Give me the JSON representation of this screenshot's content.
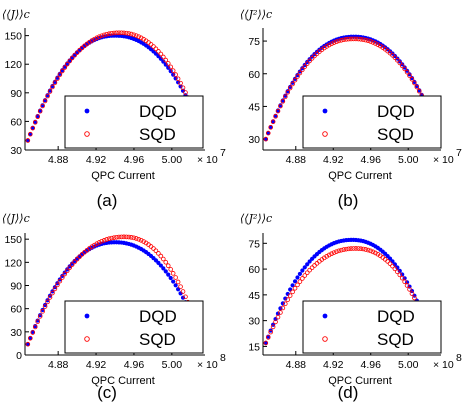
{
  "chart_data": [
    {
      "type": "scatter",
      "ylabel": "⟨⟨J⟩⟩c",
      "xlabel": "QPC Current",
      "caption": "(a)",
      "x_multiplier": "× 10",
      "x_exponent": "7",
      "xlim": [
        4.845,
        5.035
      ],
      "ylim": [
        30,
        158
      ],
      "xticks": [
        "4.88",
        "4.92",
        "4.96",
        "5.00"
      ],
      "xtick_values": [
        4.88,
        4.92,
        4.96,
        5.0
      ],
      "yticks": [
        "30",
        "60",
        "90",
        "120",
        "150"
      ],
      "ytick_values": [
        30,
        60,
        90,
        120,
        150
      ],
      "legend_position": "lower-center",
      "series": [
        {
          "name": "DQD",
          "color": "#0000ff",
          "marker": "filled-dot",
          "x_range": [
            4.848,
            5.03
          ],
          "peak_x": 4.94,
          "peak_y": 150,
          "end_y_left": 40,
          "end_y_right": 55
        },
        {
          "name": "SQD",
          "color": "#ff0000",
          "marker": "open-circle",
          "x_range": [
            4.848,
            5.03
          ],
          "peak_x": 4.945,
          "peak_y": 153,
          "end_y_left": 40,
          "end_y_right": 55
        }
      ]
    },
    {
      "type": "scatter",
      "ylabel": "⟨⟨J²⟩⟩c",
      "xlabel": "QPC Current",
      "caption": "(b)",
      "x_multiplier": "× 10",
      "x_exponent": "7",
      "xlim": [
        4.845,
        5.035
      ],
      "ylim": [
        25,
        81
      ],
      "xticks": [
        "4.88",
        "4.92",
        "4.96",
        "5.00"
      ],
      "xtick_values": [
        4.88,
        4.92,
        4.96,
        5.0
      ],
      "yticks": [
        "30",
        "45",
        "60",
        "75"
      ],
      "ytick_values": [
        30,
        45,
        60,
        75
      ],
      "legend_position": "lower-center",
      "series": [
        {
          "name": "DQD",
          "color": "#0000ff",
          "marker": "filled-dot",
          "x_range": [
            4.848,
            5.03
          ],
          "peak_x": 4.942,
          "peak_y": 77,
          "end_y_left": 30,
          "end_y_right": 36
        },
        {
          "name": "SQD",
          "color": "#ff0000",
          "marker": "open-circle",
          "x_range": [
            4.848,
            5.03
          ],
          "peak_x": 4.942,
          "peak_y": 76,
          "end_y_left": 30,
          "end_y_right": 36
        }
      ]
    },
    {
      "type": "scatter",
      "ylabel": "⟨⟨J⟩⟩c",
      "xlabel": "QPC Current",
      "caption": "(c)",
      "x_multiplier": "× 10",
      "x_exponent": "8",
      "xlim": [
        4.845,
        5.035
      ],
      "ylim": [
        0,
        158
      ],
      "xticks": [
        "4.88",
        "4.92",
        "4.96",
        "5.00"
      ],
      "xtick_values": [
        4.88,
        4.92,
        4.96,
        5.0
      ],
      "yticks": [
        "0",
        "30",
        "60",
        "90",
        "120",
        "150"
      ],
      "ytick_values": [
        0,
        30,
        60,
        90,
        120,
        150
      ],
      "legend_position": "lower-center",
      "series": [
        {
          "name": "DQD",
          "color": "#0000ff",
          "marker": "filled-dot",
          "x_range": [
            4.848,
            5.03
          ],
          "peak_x": 4.94,
          "peak_y": 146,
          "end_y_left": 14,
          "end_y_right": 28
        },
        {
          "name": "SQD",
          "color": "#ff0000",
          "marker": "open-circle",
          "x_range": [
            4.848,
            5.03
          ],
          "peak_x": 4.95,
          "peak_y": 153,
          "end_y_left": 14,
          "end_y_right": 28
        }
      ]
    },
    {
      "type": "scatter",
      "ylabel": "⟨⟨J²⟩⟩c",
      "xlabel": "QPC Current",
      "caption": "(d)",
      "x_multiplier": "× 10",
      "x_exponent": "8",
      "xlim": [
        4.845,
        5.035
      ],
      "ylim": [
        10,
        81
      ],
      "xticks": [
        "4.88",
        "4.92",
        "4.96",
        "5.00"
      ],
      "xtick_values": [
        4.88,
        4.92,
        4.96,
        5.0
      ],
      "yticks": [
        "15",
        "30",
        "45",
        "60",
        "75"
      ],
      "ytick_values": [
        15,
        30,
        45,
        60,
        75
      ],
      "legend_position": "lower-center",
      "series": [
        {
          "name": "DQD",
          "color": "#0000ff",
          "marker": "filled-dot",
          "x_range": [
            4.848,
            5.03
          ],
          "peak_x": 4.94,
          "peak_y": 77,
          "end_y_left": 17,
          "end_y_right": 14
        },
        {
          "name": "SQD",
          "color": "#ff0000",
          "marker": "open-circle",
          "x_range": [
            4.848,
            5.03
          ],
          "peak_x": 4.944,
          "peak_y": 72,
          "end_y_left": 17,
          "end_y_right": 14
        }
      ]
    }
  ]
}
